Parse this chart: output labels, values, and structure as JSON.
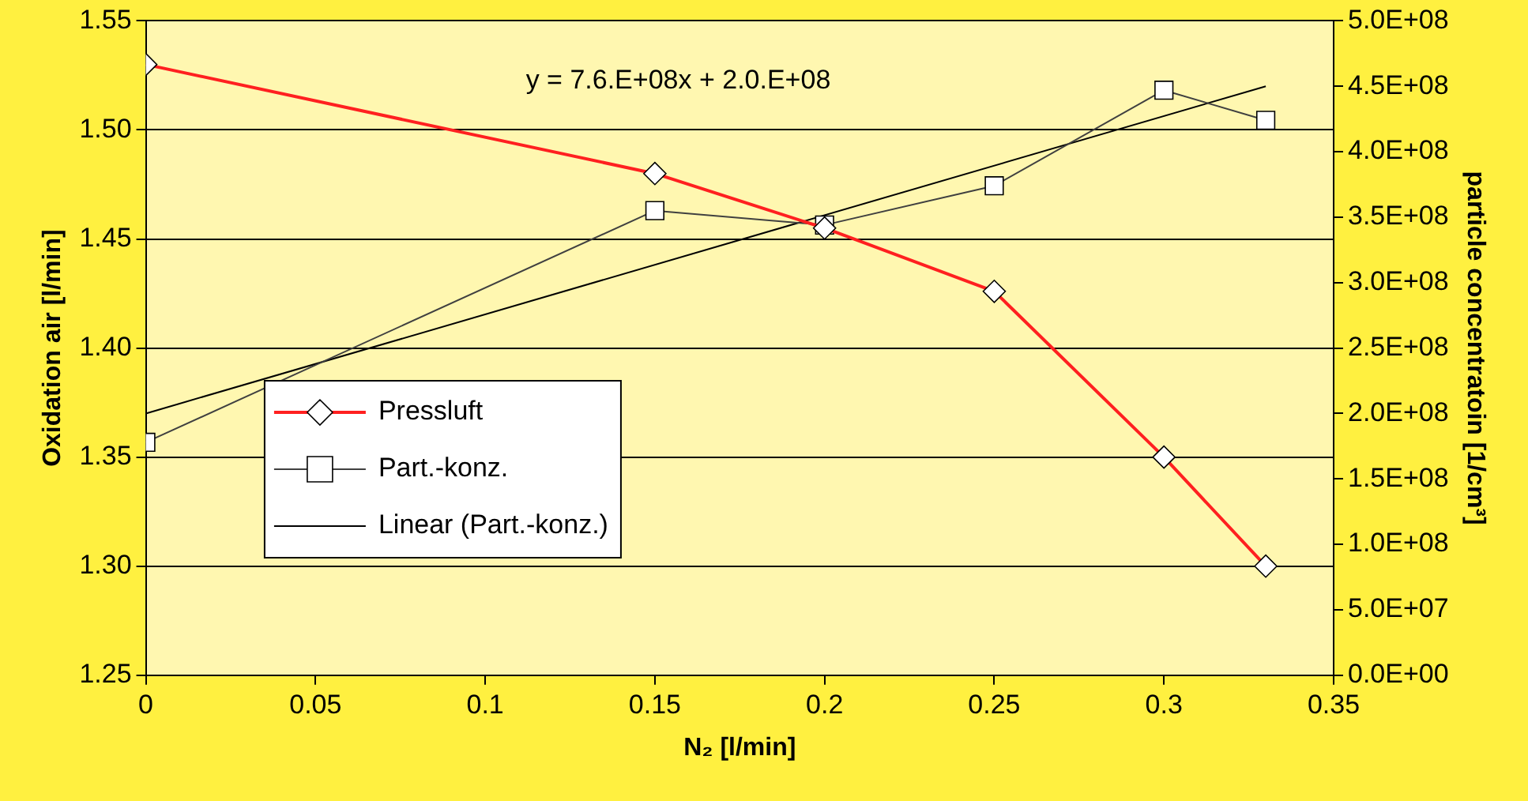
{
  "chart_data": {
    "type": "line",
    "xlabel": "N₂ [l/min]",
    "ylabel": "Oxidation air [l/min]",
    "y2label": "particle concentratoin [1/cm³]",
    "x": [
      0,
      0.15,
      0.2,
      0.25,
      0.3,
      0.33
    ],
    "series": [
      {
        "name": "Pressluft",
        "color": "#ff2020",
        "values": [
          1.53,
          1.48,
          1.455,
          1.426,
          1.35,
          1.3
        ],
        "marker": "diamond"
      },
      {
        "name": "Part.-konz.",
        "color": "#404040",
        "axis": "y2",
        "values": [
          178000000.0,
          355000000.0,
          344000000.0,
          374000000.0,
          447000000.0,
          424000000.0
        ],
        "marker": "square"
      },
      {
        "name": "Linear (Part.-konz.)",
        "type": "line",
        "color": "#000000",
        "axis": "y2",
        "x": [
          0,
          0.33
        ],
        "values": [
          200000000.0,
          450000000.0
        ],
        "marker": "none"
      }
    ],
    "xlim": [
      0,
      0.35
    ],
    "xticks": [
      0,
      0.05,
      0.1,
      0.15,
      0.2,
      0.25,
      0.3,
      0.35
    ],
    "ylim": [
      1.25,
      1.55
    ],
    "yticks": [
      1.25,
      {
        "value": 1.3,
        "label": "1.30"
      },
      1.35,
      {
        "value": 1.4,
        "label": "1.40"
      },
      1.45,
      {
        "value": 1.5,
        "label": "1.50"
      },
      1.55
    ],
    "y2lim": [
      0,
      500000000.0
    ],
    "y2ticks": [
      {
        "value": 0,
        "label": "0.0E+00"
      },
      {
        "value": 50000000.0,
        "label": "5.0E+07"
      },
      {
        "value": 100000000.0,
        "label": "1.0E+08"
      },
      {
        "value": 150000000.0,
        "label": "1.5E+08"
      },
      {
        "value": 200000000.0,
        "label": "2.0E+08"
      },
      {
        "value": 250000000.0,
        "label": "2.5E+08"
      },
      {
        "value": 300000000.0,
        "label": "3.0E+08"
      },
      {
        "value": 350000000.0,
        "label": "3.5E+08"
      },
      {
        "value": 400000000.0,
        "label": "4.0E+08"
      },
      {
        "value": 450000000.0,
        "label": "4.5E+08"
      },
      {
        "value": 500000000.0,
        "label": "5.0E+08"
      }
    ],
    "annotations": [
      "y = 7.6.E+08x + 2.0.E+08"
    ],
    "grid": "y",
    "legend": "bottom left"
  }
}
